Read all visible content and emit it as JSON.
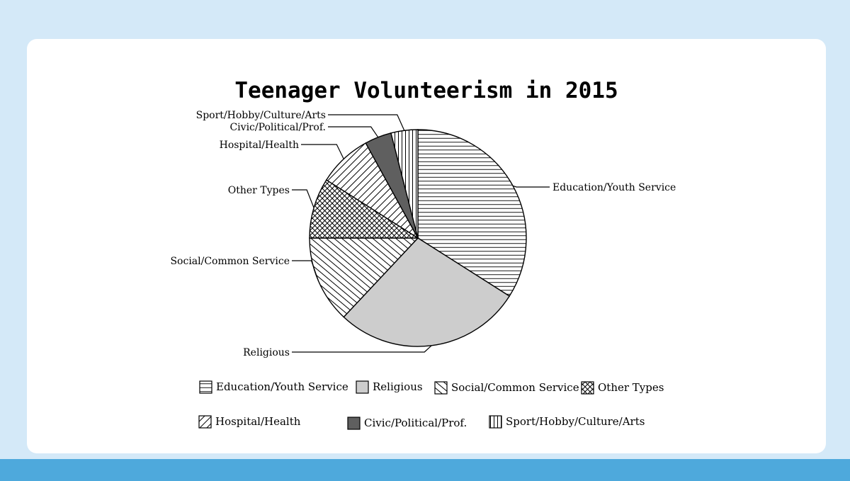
{
  "chart_data": {
    "type": "pie",
    "title": "Teenager Volunteerism in 2015",
    "slices": [
      {
        "label": "Education/Youth Service",
        "value": 34,
        "fill": "horizontal-lines"
      },
      {
        "label": "Religious",
        "value": 28,
        "fill": "solid-light-gray"
      },
      {
        "label": "Social/Common Service",
        "value": 13,
        "fill": "diagonal-lines-down"
      },
      {
        "label": "Other Types",
        "value": 9,
        "fill": "crosshatch"
      },
      {
        "label": "Hospital/Health",
        "value": 8,
        "fill": "diagonal-lines-up"
      },
      {
        "label": "Civic/Political/Prof.",
        "value": 4,
        "fill": "solid-dark-gray"
      },
      {
        "label": "Sport/Hobby/Culture/Arts",
        "value": 4,
        "fill": "vertical-lines"
      }
    ],
    "legend": {
      "position": "bottom"
    },
    "start": "12 o'clock, clockwise"
  },
  "colors": {
    "page_background": "#d4e9f8",
    "card_background": "#ffffff",
    "bottom_band": "#4ea9dc",
    "religious_fill": "#cdcdcd",
    "civic_fill": "#5f5f5f"
  }
}
